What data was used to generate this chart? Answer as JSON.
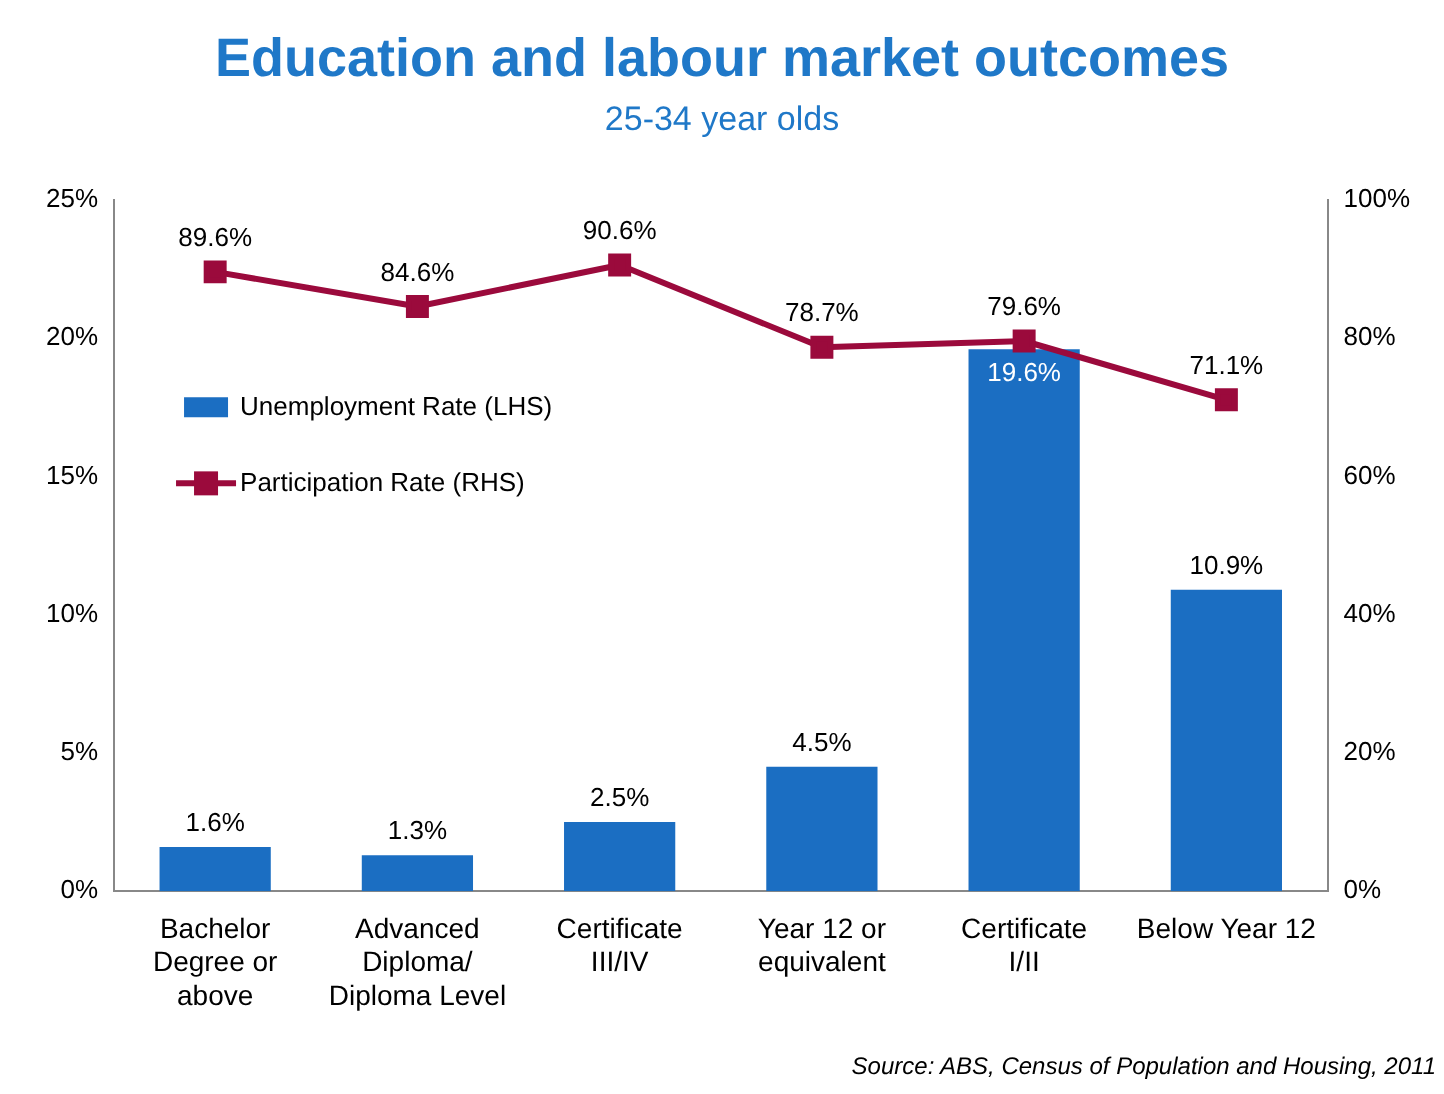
{
  "chart_data": {
    "type": "bar",
    "title": "Education and labour market outcomes",
    "subtitle": "25-34 year olds",
    "categories": [
      "Bachelor Degree or above",
      "Advanced Diploma/ Diploma Level",
      "Certificate III/IV",
      "Year 12 or equivalent",
      "Certificate I/II",
      "Below Year 12"
    ],
    "series": [
      {
        "name": "Unemployment Rate (LHS)",
        "color": "#1b6ec2",
        "values": [
          1.6,
          1.3,
          2.5,
          4.5,
          19.6,
          10.9
        ],
        "value_labels": [
          "1.6%",
          "1.3%",
          "2.5%",
          "4.5%",
          "19.6%",
          "10.9%"
        ]
      },
      {
        "name": "Participation Rate (RHS)",
        "type": "line",
        "axis": "y2",
        "color": "#9b0a3c",
        "marker": "square",
        "values": [
          89.6,
          84.6,
          90.6,
          78.7,
          79.6,
          71.1
        ],
        "value_labels": [
          "89.6%",
          "84.6%",
          "90.6%",
          "78.7%",
          "79.6%",
          "71.1%"
        ]
      }
    ],
    "ylim": [
      0,
      25
    ],
    "yticks": [
      {
        "value": 0,
        "label": "0%"
      },
      {
        "value": 5,
        "label": "5%"
      },
      {
        "value": 10,
        "label": "10%"
      },
      {
        "value": 15,
        "label": "15%"
      },
      {
        "value": 20,
        "label": "20%"
      },
      {
        "value": 25,
        "label": "25%"
      }
    ],
    "y2lim": [
      0,
      100
    ],
    "y2ticks": [
      {
        "value": 0,
        "label": "0%"
      },
      {
        "value": 20,
        "label": "20%"
      },
      {
        "value": 40,
        "label": "40%"
      },
      {
        "value": 60,
        "label": "60%"
      },
      {
        "value": 80,
        "label": "80%"
      },
      {
        "value": 100,
        "label": "100%"
      }
    ],
    "grid": false,
    "legend": "left",
    "annotations": [
      "Source: ABS, Census of Population and Housing, 2011"
    ]
  }
}
